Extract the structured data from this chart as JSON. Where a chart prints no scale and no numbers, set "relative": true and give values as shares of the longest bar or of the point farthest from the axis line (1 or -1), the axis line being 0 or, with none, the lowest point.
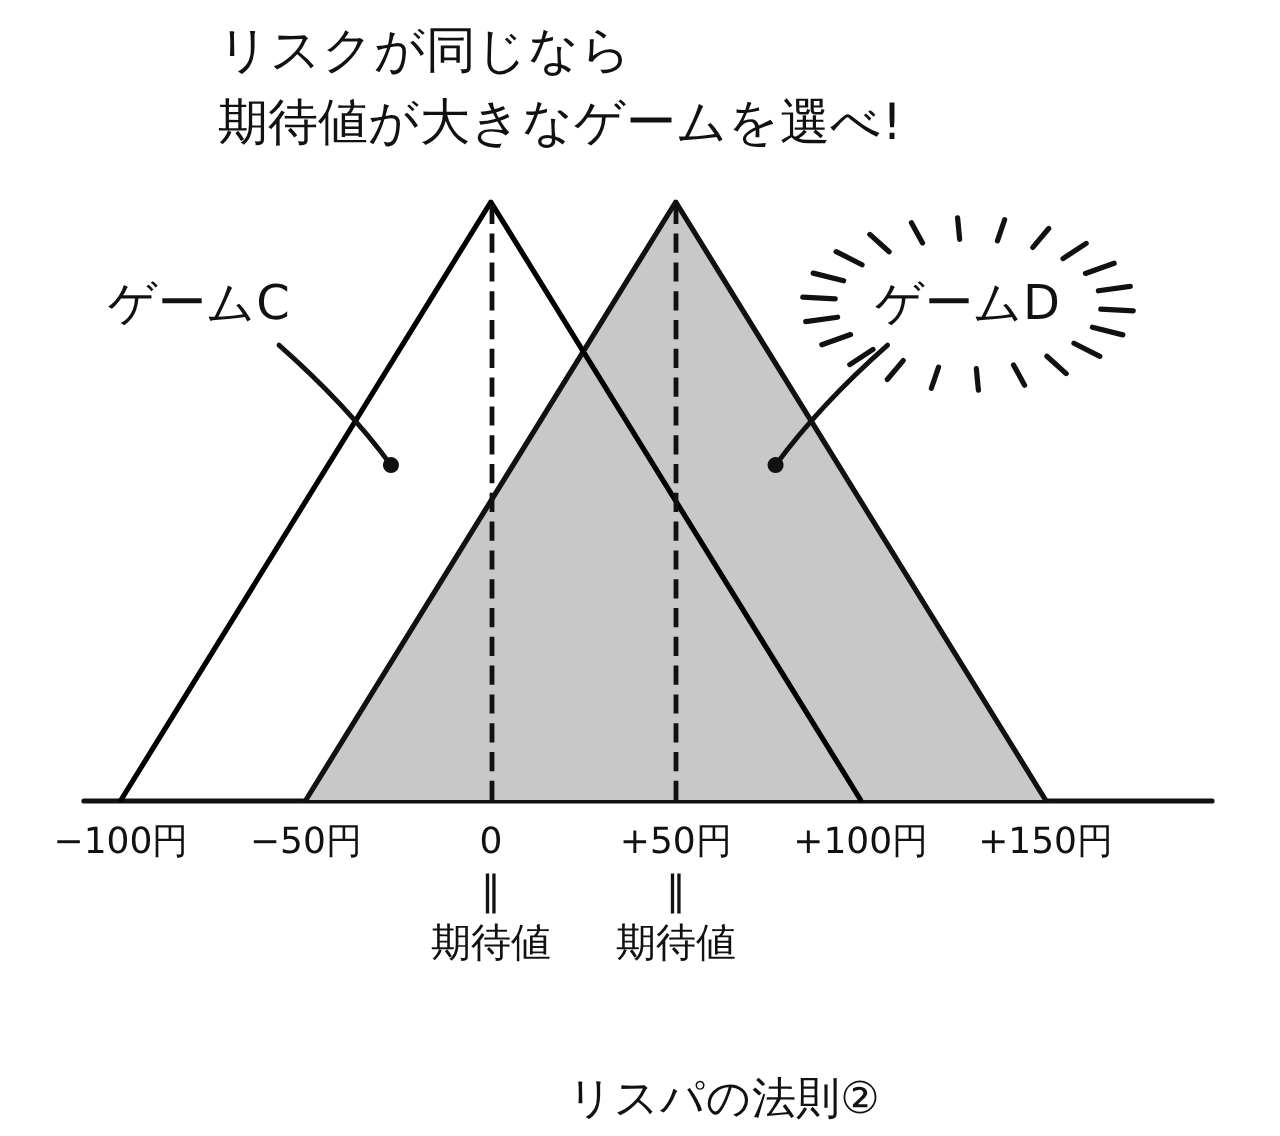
{
  "chart_data": {
    "type": "area",
    "title": "リスクが同じなら",
    "subtitle": "期待値が大きなゲームを選べ!",
    "annotations": [
      "リスパの法則②"
    ],
    "series": [
      {
        "name": "ゲームC",
        "type": "line",
        "color": "#000000",
        "x": [
          -100,
          0,
          100
        ],
        "values": [
          0,
          1,
          0
        ]
      },
      {
        "name": "ゲームD",
        "color": "#c8c8c8",
        "x": [
          -50,
          50,
          150
        ],
        "values": [
          0,
          1,
          0
        ]
      }
    ],
    "relative": true,
    "xlim": [
      -110,
      195
    ],
    "xticks": [
      {
        "value": -100,
        "label": "−100円"
      },
      {
        "value": -50,
        "label": "−50円"
      },
      0,
      {
        "value": 50,
        "label": "+50円"
      },
      {
        "value": 100,
        "label": "+100円"
      },
      {
        "value": 150,
        "label": "+150円"
      }
    ],
    "ref_lines": [
      {
        "axis": "x",
        "value": 0,
        "label": "‖\n期待値",
        "line_style": "dashed"
      },
      {
        "axis": "x",
        "value": 50,
        "label": "‖\n期待値",
        "line_style": "dashed"
      }
    ],
    "tick_labels": "x",
    "marker": "none"
  }
}
